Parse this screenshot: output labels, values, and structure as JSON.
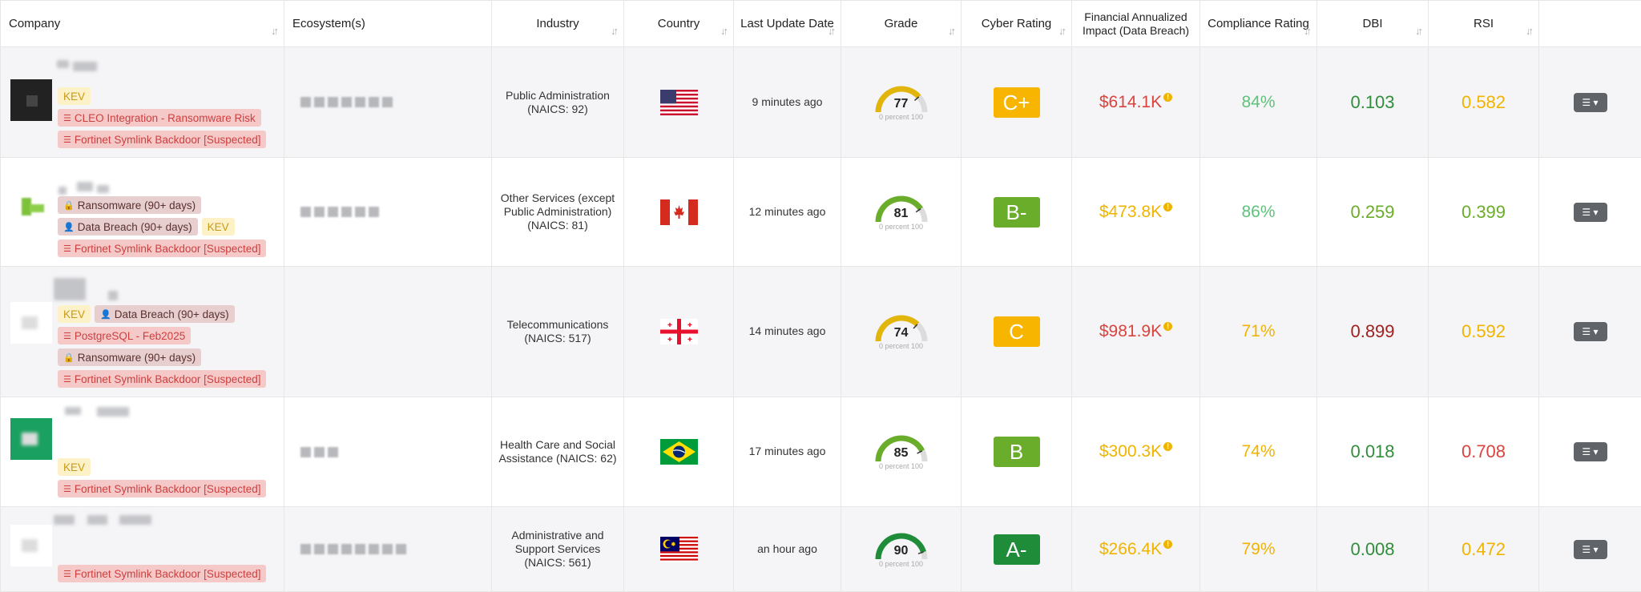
{
  "headers": {
    "company": "Company",
    "ecosystems": "Ecosystem(s)",
    "industry": "Industry",
    "country": "Country",
    "last_update": "Last Update Date",
    "grade": "Grade",
    "cyber_rating": "Cyber Rating",
    "financial_impact": "Financial Annualized Impact (Data Breach)",
    "compliance_rating": "Compliance Rating",
    "dbi": "DBI",
    "rsi": "RSI"
  },
  "gauge_sub": "0   percent 100",
  "colors": {
    "green": "#6aad2a",
    "dark_green": "#1f8c3a",
    "yellow": "#f0b400",
    "orange": "#f5a623",
    "red": "#d9443e",
    "dark_red": "#a02020"
  },
  "rows": [
    {
      "tags": [
        [
          "KEV"
        ],
        [
          "CLEO Integration - Ransomware Risk"
        ],
        [
          "Fortinet Symlink Backdoor [Suspected]"
        ]
      ],
      "industry": "Public Administration (NAICS: 92)",
      "country": "United States",
      "time": "9 minutes ago",
      "score": "77",
      "grade": "C+",
      "money": "$614.1K",
      "compliance": "84%",
      "dbi": "0.103",
      "rsi": "0.582"
    },
    {
      "tags": [
        [
          "Ransomware (90+ days)"
        ],
        [
          "Data Breach (90+ days)",
          "KEV"
        ],
        [
          "Fortinet Symlink Backdoor [Suspected]"
        ]
      ],
      "industry": "Other Services (except Public Administration) (NAICS: 81)",
      "country": "Canada",
      "time": "12 minutes ago",
      "score": "81",
      "grade": "B-",
      "money": "$473.8K",
      "compliance": "86%",
      "dbi": "0.259",
      "rsi": "0.399"
    },
    {
      "tags": [
        [
          "KEV",
          "Data Breach (90+ days)"
        ],
        [
          "PostgreSQL - Feb2025"
        ],
        [
          "Ransomware (90+ days)"
        ],
        [
          "Fortinet Symlink Backdoor [Suspected]"
        ]
      ],
      "industry": "Telecommunications (NAICS: 517)",
      "country": "Georgia",
      "time": "14 minutes ago",
      "score": "74",
      "grade": "C",
      "money": "$981.9K",
      "compliance": "71%",
      "dbi": "0.899",
      "rsi": "0.592"
    },
    {
      "tags": [
        [
          "KEV"
        ],
        [
          "Fortinet Symlink Backdoor [Suspected]"
        ]
      ],
      "industry": "Health Care and Social Assistance (NAICS: 62)",
      "country": "Brazil",
      "time": "17 minutes ago",
      "score": "85",
      "grade": "B",
      "money": "$300.3K",
      "compliance": "74%",
      "dbi": "0.018",
      "rsi": "0.708"
    },
    {
      "tags": [
        [
          "Fortinet Symlink Backdoor [Suspected]"
        ]
      ],
      "industry": "Administrative and Support Services (NAICS: 561)",
      "country": "Malaysia",
      "time": "an hour ago",
      "score": "90",
      "grade": "A-",
      "money": "$266.4K",
      "compliance": "79%",
      "dbi": "0.008",
      "rsi": "0.472"
    }
  ]
}
